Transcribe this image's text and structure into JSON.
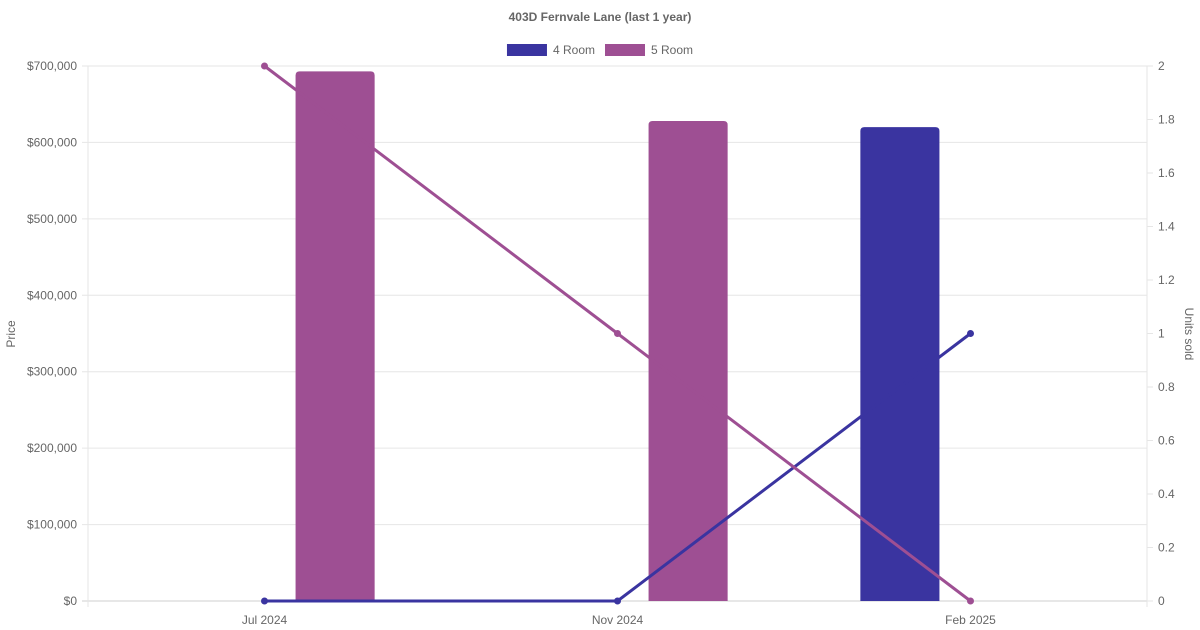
{
  "chart_data": {
    "type": "bar",
    "title": "403D Fernvale Lane (last 1 year)",
    "categories": [
      "Jul 2024",
      "Nov 2024",
      "Feb 2025"
    ],
    "y_left": {
      "label": "Price",
      "ylim": [
        0,
        700000
      ],
      "ticks": [
        "$0",
        "$100,000",
        "$200,000",
        "$300,000",
        "$400,000",
        "$500,000",
        "$600,000",
        "$700,000"
      ]
    },
    "y_right": {
      "label": "Units sold",
      "ylim": [
        0,
        2
      ],
      "ticks": [
        "0",
        "0.2",
        "0.4",
        "0.6",
        "0.8",
        "1",
        "1.2",
        "1.4",
        "1.6",
        "1.8",
        "2"
      ]
    },
    "legend": {
      "placement": "top-center"
    },
    "grid": true,
    "series": [
      {
        "name": "4 Room",
        "color": "#3a34a0",
        "price": [
          null,
          null,
          620000
        ],
        "units_sold": [
          0,
          0,
          1
        ]
      },
      {
        "name": "5 Room",
        "color": "#9e4f93",
        "price": [
          693000,
          628000,
          null
        ],
        "units_sold": [
          2,
          1,
          0
        ]
      }
    ]
  }
}
